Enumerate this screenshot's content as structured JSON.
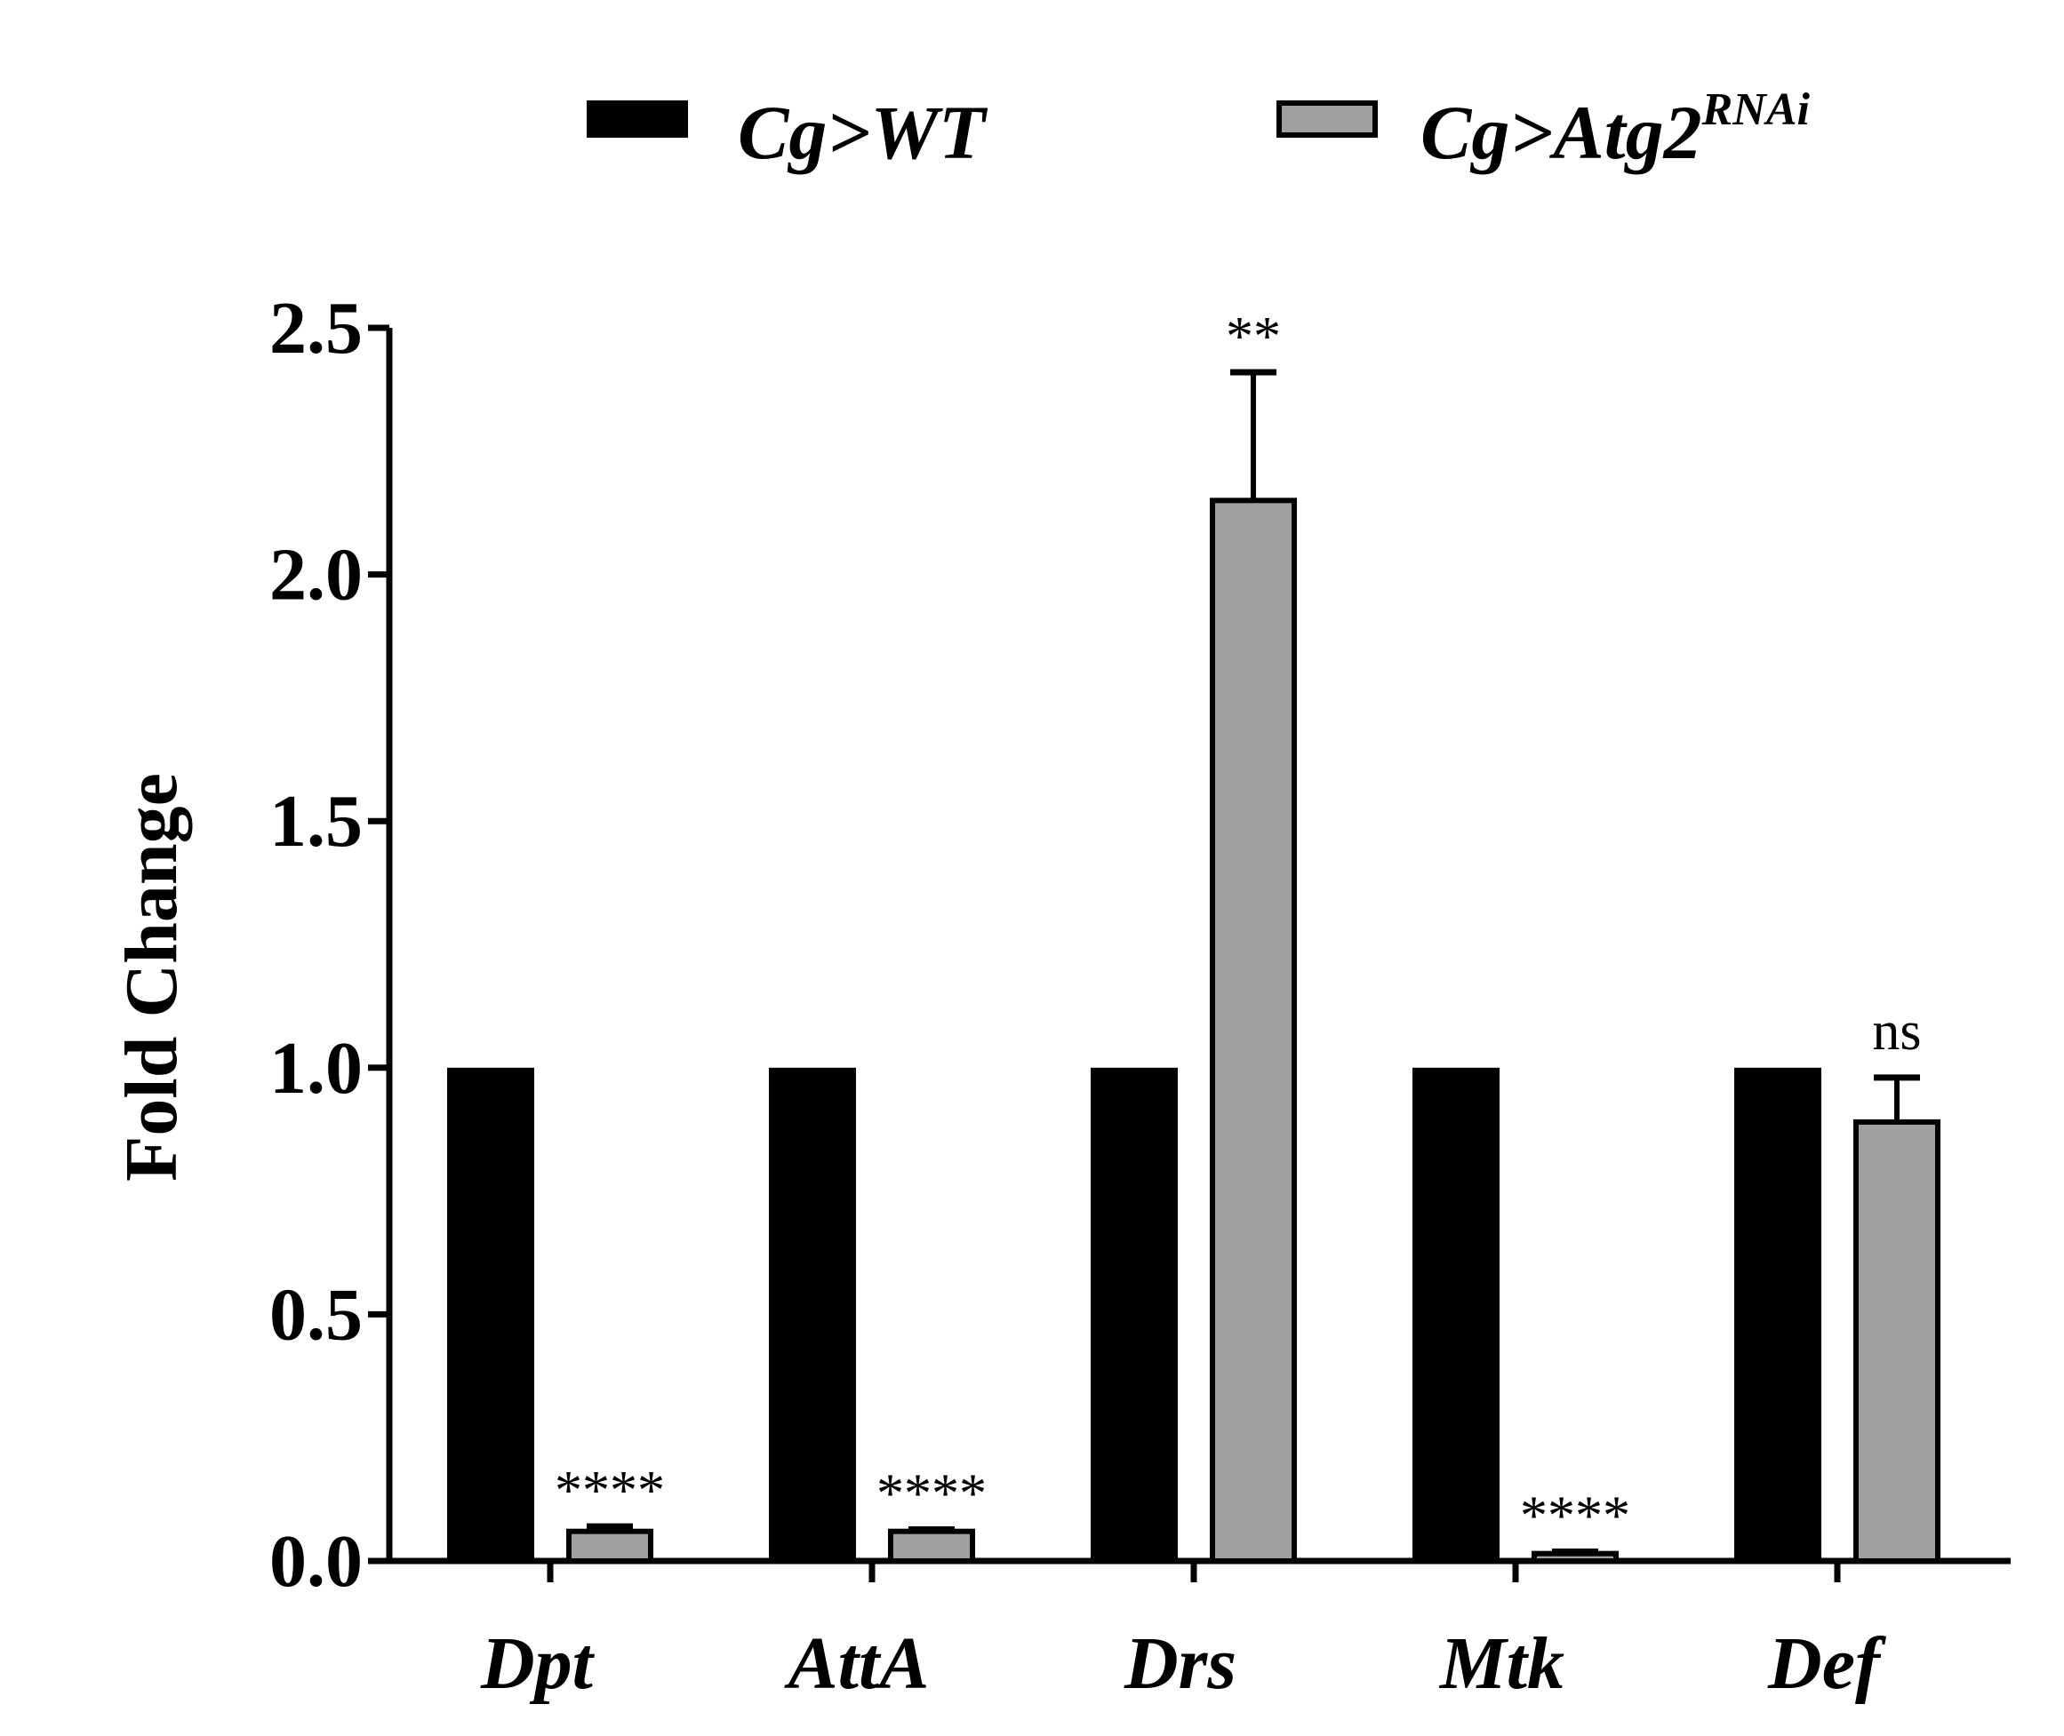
{
  "chart_data": {
    "type": "bar",
    "title": "",
    "xlabel": "",
    "ylabel": "Fold Change",
    "ylim": [
      0,
      2.5
    ],
    "yticks": [
      "0.0",
      "0.5",
      "1.0",
      "1.5",
      "2.0",
      "2.5"
    ],
    "ytick_values": [
      0,
      0.5,
      1.0,
      1.5,
      2.0,
      2.5
    ],
    "categories": [
      "Dpt",
      "AttA",
      "Drs",
      "Mtk",
      "Def"
    ],
    "legend_position": "top",
    "series": [
      {
        "name": "Cg>WT",
        "name_base": "Cg>WT",
        "name_sup": "",
        "color": "#000000",
        "values": [
          1.0,
          1.0,
          1.0,
          1.0,
          1.0
        ],
        "errors": [
          0,
          0,
          0,
          0,
          0
        ]
      },
      {
        "name": "Cg>Atg2RNAi",
        "name_base": "Cg>Atg2",
        "name_sup": "RNAi",
        "color": "#a0a0a0",
        "values": [
          0.06,
          0.06,
          2.15,
          0.015,
          0.89
        ],
        "errors": [
          0.01,
          0.004,
          0.26,
          0.004,
          0.09
        ]
      }
    ],
    "significance": [
      "****",
      "****",
      "**",
      "****",
      "ns"
    ]
  }
}
